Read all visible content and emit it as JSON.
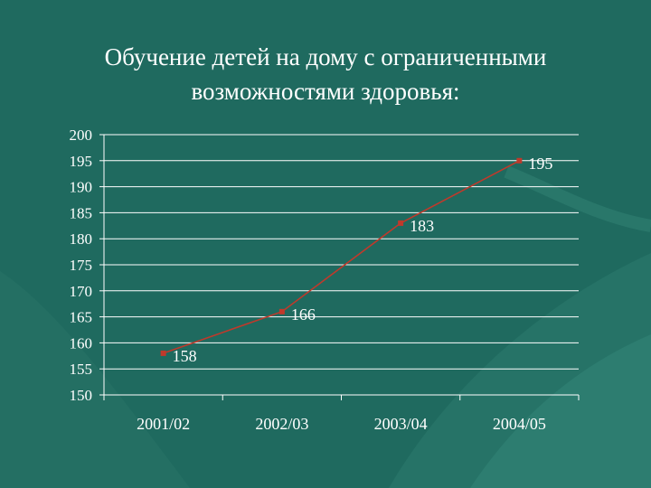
{
  "slide": {
    "title_line1": "Обучение детей на дому с ограниченными",
    "title_line2": "возможностями здоровья:",
    "background_color": "#1f6a5f"
  },
  "chart_data": {
    "type": "line",
    "title": "",
    "xlabel": "",
    "ylabel": "",
    "categories": [
      "2001/02",
      "2002/03",
      "2003/04",
      "2004/05"
    ],
    "series": [
      {
        "values": [
          158,
          166,
          183,
          195
        ],
        "color": "#c0392b"
      }
    ],
    "data_labels": [
      "158",
      "166",
      "183",
      "195"
    ],
    "ylim": [
      150,
      200
    ],
    "yticks": [
      150,
      155,
      160,
      165,
      170,
      175,
      180,
      185,
      190,
      195,
      200
    ],
    "grid": true,
    "legend": "none"
  }
}
